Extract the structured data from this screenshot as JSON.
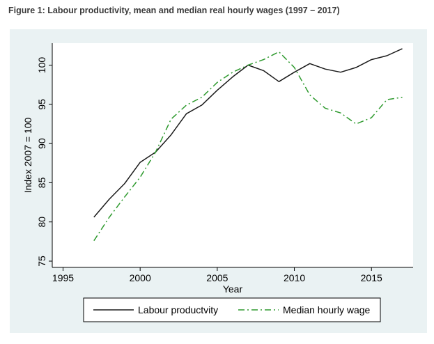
{
  "title": "Figure 1: Labour productivity, mean and median real hourly wages (1997 – 2017)",
  "colors": {
    "background": "#eaf2f3",
    "plot_area": "#ffffff",
    "productivity": "#1a1a1a",
    "median_wage": "#2e9a2e"
  },
  "chart_data": {
    "type": "line",
    "title": "",
    "xlabel": "Year",
    "ylabel": "Index 2007 = 100",
    "xlim": [
      1994.3,
      2017.7
    ],
    "ylim": [
      74.2,
      102.8
    ],
    "xticks": [
      1995,
      2000,
      2005,
      2010,
      2015
    ],
    "yticks": [
      75,
      80,
      85,
      90,
      95,
      100
    ],
    "grid": false,
    "legend_position": "bottom",
    "x": [
      1997,
      1998,
      1999,
      2000,
      2001,
      2002,
      2003,
      2004,
      2005,
      2006,
      2007,
      2008,
      2009,
      2010,
      2011,
      2012,
      2013,
      2014,
      2015,
      2016,
      2017
    ],
    "series": [
      {
        "name": "Labour productvity",
        "style": "solid",
        "values": [
          80.6,
          82.9,
          84.9,
          87.6,
          88.9,
          91.1,
          93.8,
          94.9,
          96.8,
          98.5,
          100.0,
          99.3,
          97.9,
          99.1,
          100.2,
          99.5,
          99.1,
          99.7,
          100.7,
          101.2,
          102.1
        ]
      },
      {
        "name": "Median hourly wage",
        "style": "dash-dot",
        "values": [
          77.6,
          80.6,
          83.2,
          85.7,
          88.9,
          93.1,
          94.9,
          95.9,
          97.8,
          99.1,
          100.0,
          100.7,
          101.7,
          99.7,
          96.2,
          94.5,
          93.9,
          92.5,
          93.3,
          95.6,
          95.9
        ]
      }
    ]
  }
}
